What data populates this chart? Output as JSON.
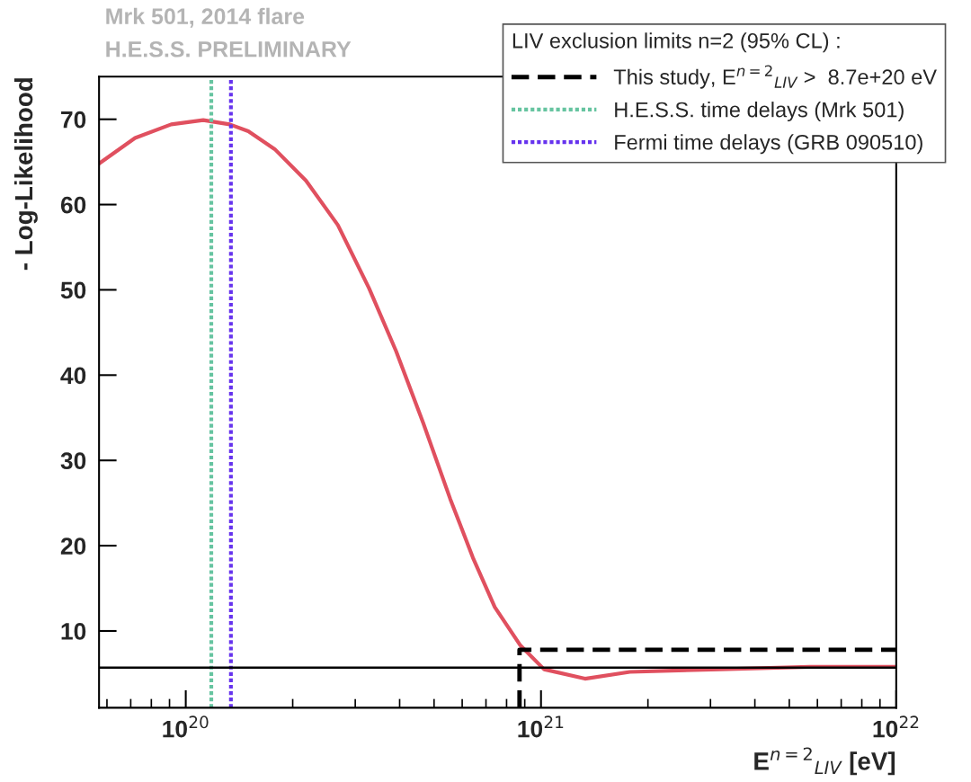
{
  "chart_data": {
    "type": "line",
    "xlabel": "E$^{n=2}$$_{LIV}$ [eV]",
    "ylabel": "- Log-Likelihood",
    "legend_title": "LIV exclusion limits n=2 (95% CL) :",
    "annotations": [
      "Mrk 501, 2014 flare",
      "H.E.S.S. PRELIMINARY"
    ],
    "log": "x",
    "xlim": [
      5.7e+19,
      1e+22
    ],
    "xticks": [
      {
        "value": 1e+20,
        "label": "10$^{20}$"
      },
      {
        "value": 1e+21,
        "label": "10$^{21}$"
      },
      {
        "value": 1e+22,
        "label": "10$^{22}$"
      }
    ],
    "ylim": [
      1,
      75
    ],
    "yticks": [
      10,
      20,
      30,
      40,
      50,
      60,
      70
    ],
    "grid": false,
    "legend": "top right",
    "series": [
      {
        "color": "#e0505f",
        "line_style": "solid",
        "x": [
          5.7e+19,
          7.2e+19,
          9.1e+19,
          1.12e+20,
          1.33e+20,
          1.5e+20,
          1.78e+20,
          2.18e+20,
          2.68e+20,
          3.28e+20,
          3.91e+20,
          4.66e+20,
          5.55e+20,
          6.43e+20,
          7.41e+20,
          8.75e+20,
          1.02e+21,
          1.33e+21,
          1.78e+21,
          3.19e+21,
          5.71e+21,
          1e+22
        ],
        "values": [
          64.8,
          67.8,
          69.4,
          69.9,
          69.4,
          68.6,
          66.5,
          62.8,
          57.6,
          50.2,
          42.8,
          34.4,
          25.5,
          18.6,
          12.8,
          8.3,
          5.5,
          4.4,
          5.2,
          5.5,
          5.8,
          5.8
        ]
      },
      {
        "name": "This study, E$^{n=2}$$_{LIV}$ >  8.7e+20 eV",
        "color": "#000000",
        "line_style": "dashed",
        "x": [
          8.7e+20,
          8.7e+20,
          1e+22
        ],
        "values": [
          1,
          7.8,
          7.8
        ]
      },
      {
        "name": "H.E.S.S. time delays (Mrk 501)",
        "color": "#66c4a0",
        "line_style": "dotted",
        "x": [
          1.18e+20,
          1.18e+20
        ],
        "values": [
          1,
          75
        ]
      },
      {
        "name": "Fermi time delays (GRB 090510)",
        "color": "#6633ee",
        "line_style": "dotted",
        "x": [
          1.34e+20,
          1.34e+20
        ],
        "values": [
          1,
          75
        ]
      }
    ],
    "ref_lines": [
      {
        "axis": "y",
        "value": 5.7,
        "color": "#000000",
        "line_style": "solid"
      }
    ]
  }
}
